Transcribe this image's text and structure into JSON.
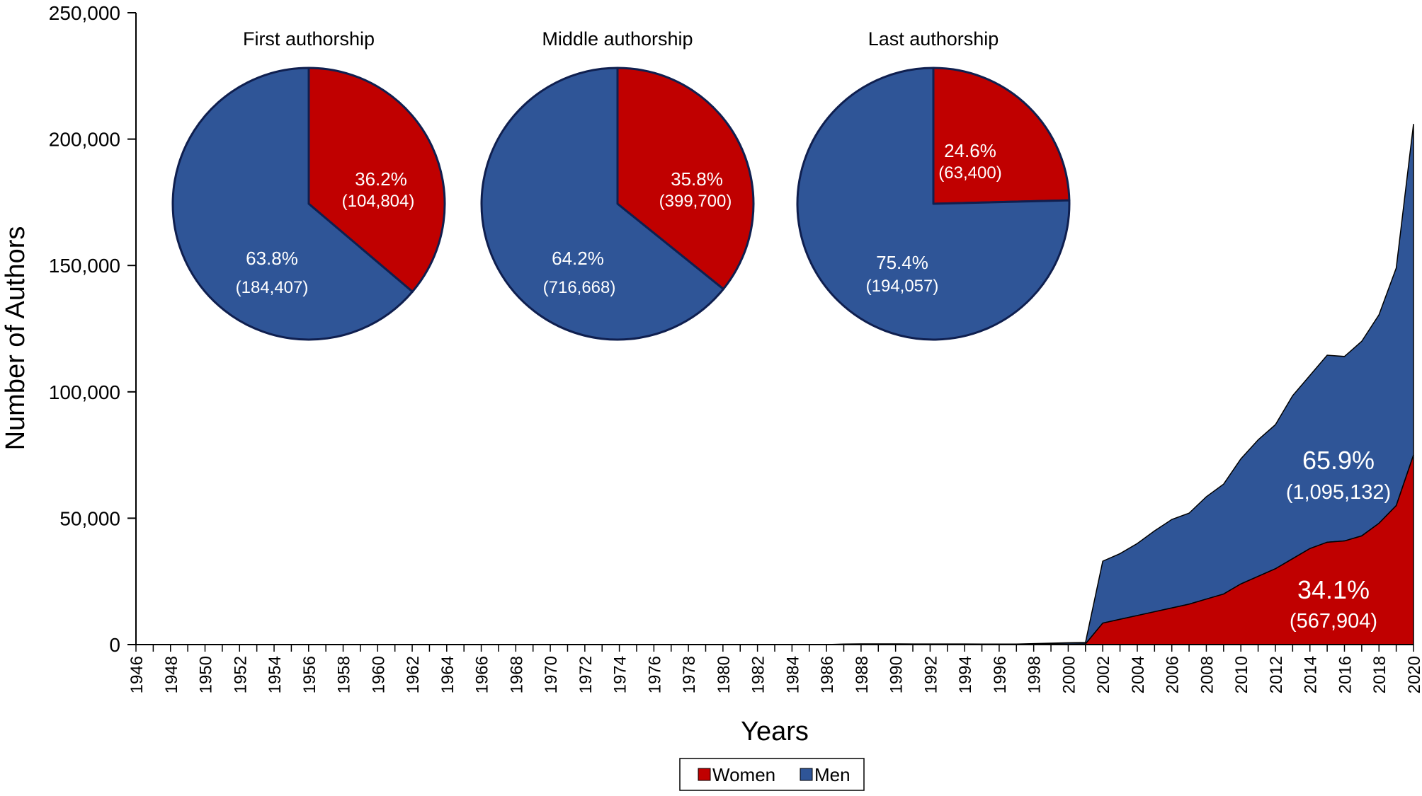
{
  "colors": {
    "women": "#c00000",
    "men": "#2f5597",
    "outline": "#0f1f4f",
    "axis": "#000000"
  },
  "chart_data": [
    {
      "type": "area",
      "xlabel": "Years",
      "ylabel": "Number of Authors",
      "ylim": [
        0,
        250000
      ],
      "yticks": [
        0,
        50000,
        100000,
        150000,
        200000,
        250000
      ],
      "ytick_labels": [
        "0",
        "50,000",
        "100,000",
        "150,000",
        "200,000",
        "250,000"
      ],
      "xlim": [
        1946,
        2020
      ],
      "xtick_labels": [
        "1946",
        "1948",
        "1950",
        "1952",
        "1954",
        "1956",
        "1958",
        "1960",
        "1962",
        "1964",
        "1966",
        "1968",
        "1970",
        "1972",
        "1974",
        "1976",
        "1978",
        "1980",
        "1982",
        "1984",
        "1986",
        "1988",
        "1990",
        "1992",
        "1994",
        "1996",
        "1998",
        "2000",
        "2002",
        "2004",
        "2006",
        "2008",
        "2010",
        "2012",
        "2014",
        "2016",
        "2018",
        "2020"
      ],
      "stacked": true,
      "x": [
        1946,
        1986,
        1987,
        1988,
        1989,
        1990,
        1991,
        1992,
        1993,
        1994,
        1995,
        1996,
        1997,
        1998,
        1999,
        2000,
        2001,
        2002,
        2003,
        2004,
        2005,
        2006,
        2007,
        2008,
        2009,
        2010,
        2011,
        2012,
        2013,
        2014,
        2015,
        2016,
        2017,
        2018,
        2019,
        2020
      ],
      "series": [
        {
          "name": "Women",
          "values": [
            0,
            0,
            50,
            80,
            80,
            80,
            70,
            70,
            70,
            70,
            60,
            60,
            60,
            100,
            150,
            200,
            250,
            8500,
            10000,
            11500,
            13000,
            14500,
            16000,
            18000,
            20000,
            24000,
            27000,
            30000,
            34000,
            38000,
            40500,
            41000,
            43000,
            48000,
            55000,
            75000
          ]
        },
        {
          "name": "Men",
          "values": [
            0,
            0,
            150,
            200,
            200,
            200,
            180,
            180,
            180,
            180,
            150,
            150,
            150,
            300,
            400,
            550,
            600,
            24500,
            26000,
            28500,
            32000,
            35000,
            36000,
            40500,
            43500,
            49500,
            54000,
            57000,
            64500,
            68500,
            74000,
            73000,
            77000,
            82500,
            94000,
            131000
          ]
        }
      ],
      "legend": [
        "Women",
        "Men"
      ],
      "legend_placement": "bottom",
      "annotations": [
        {
          "series": "Men",
          "percent": "65.9%",
          "count": "(1,095,132)"
        },
        {
          "series": "Women",
          "percent": "34.1%",
          "count": "(567,904)"
        }
      ]
    },
    {
      "type": "pie",
      "title": "First authorship",
      "slices": [
        {
          "name": "Women",
          "value": 36.2,
          "percent": "36.2%",
          "count": "(104,804)"
        },
        {
          "name": "Men",
          "value": 63.8,
          "percent": "63.8%",
          "count": "(184,407)"
        }
      ]
    },
    {
      "type": "pie",
      "title": "Middle authorship",
      "slices": [
        {
          "name": "Women",
          "value": 35.8,
          "percent": "35.8%",
          "count": "(399,700)"
        },
        {
          "name": "Men",
          "value": 64.2,
          "percent": "64.2%",
          "count": "(716,668)"
        }
      ]
    },
    {
      "type": "pie",
      "title": "Last authorship",
      "slices": [
        {
          "name": "Women",
          "value": 24.6,
          "percent": "24.6%",
          "count": "(63,400)"
        },
        {
          "name": "Men",
          "value": 75.4,
          "percent": "75.4%",
          "count": "(194,057)"
        }
      ]
    }
  ]
}
